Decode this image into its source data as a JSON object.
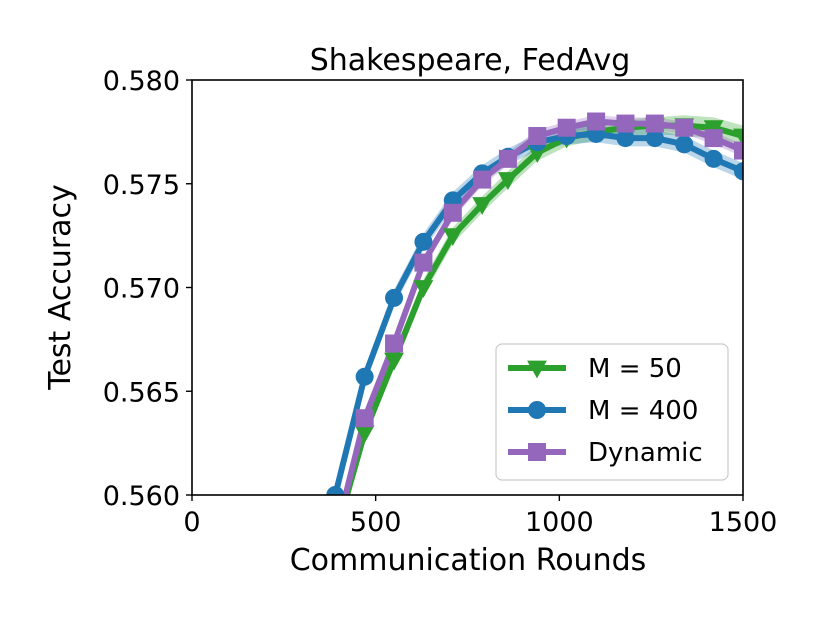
{
  "chart_data": {
    "type": "line",
    "title": "Shakespeare, FedAvg",
    "xlabel": "Communication Rounds",
    "ylabel": "Test Accuracy",
    "xlim": [
      0,
      1500
    ],
    "ylim": [
      0.56,
      0.58
    ],
    "xticks": [
      "0",
      "500",
      "1000",
      "1500"
    ],
    "yticks": [
      "0.560",
      "0.565",
      "0.570",
      "0.575",
      "0.580"
    ],
    "grid": false,
    "legend_position": "lower-right",
    "series": [
      {
        "name": "M = 50",
        "color": "#2ca02c",
        "marker": "triangle-down",
        "x": [
          390,
          470,
          550,
          630,
          710,
          790,
          860,
          940,
          1020,
          1100,
          1180,
          1260,
          1340,
          1420,
          1500
        ],
        "y": [
          0.558,
          0.563,
          0.5665,
          0.57,
          0.5725,
          0.574,
          0.5752,
          0.5765,
          0.5772,
          0.5775,
          0.5777,
          0.5778,
          0.5778,
          0.5777,
          0.5773
        ],
        "band": [
          0.0004,
          0.0004,
          0.0004,
          0.0004,
          0.0004,
          0.0004,
          0.0004,
          0.0004,
          0.0004,
          0.0004,
          0.0004,
          0.0004,
          0.0005,
          0.0005,
          0.0005
        ]
      },
      {
        "name": "M = 400",
        "color": "#1f77b4",
        "marker": "circle",
        "x": [
          390,
          470,
          550,
          630,
          710,
          790,
          860,
          940,
          1020,
          1100,
          1180,
          1260,
          1340,
          1420,
          1500
        ],
        "y": [
          0.56,
          0.5657,
          0.5695,
          0.5722,
          0.5742,
          0.5755,
          0.5763,
          0.577,
          0.5773,
          0.5774,
          0.5772,
          0.5772,
          0.5769,
          0.5762,
          0.5756
        ],
        "band": [
          0.0004,
          0.0004,
          0.0004,
          0.0004,
          0.0004,
          0.0004,
          0.0004,
          0.0004,
          0.0004,
          0.0004,
          0.0004,
          0.0004,
          0.0004,
          0.0004,
          0.0004
        ]
      },
      {
        "name": "Dynamic",
        "color": "#9467bd",
        "marker": "square",
        "x": [
          390,
          470,
          550,
          630,
          710,
          790,
          860,
          940,
          1020,
          1100,
          1180,
          1260,
          1340,
          1420,
          1500
        ],
        "y": [
          0.558,
          0.5637,
          0.5673,
          0.5712,
          0.5736,
          0.5752,
          0.5762,
          0.5773,
          0.5777,
          0.578,
          0.5779,
          0.5779,
          0.5777,
          0.5772,
          0.5766
        ],
        "band": [
          0.0003,
          0.0003,
          0.0003,
          0.0003,
          0.0003,
          0.0003,
          0.0003,
          0.0003,
          0.0003,
          0.0003,
          0.0003,
          0.0003,
          0.0003,
          0.0003,
          0.0003
        ]
      }
    ]
  }
}
